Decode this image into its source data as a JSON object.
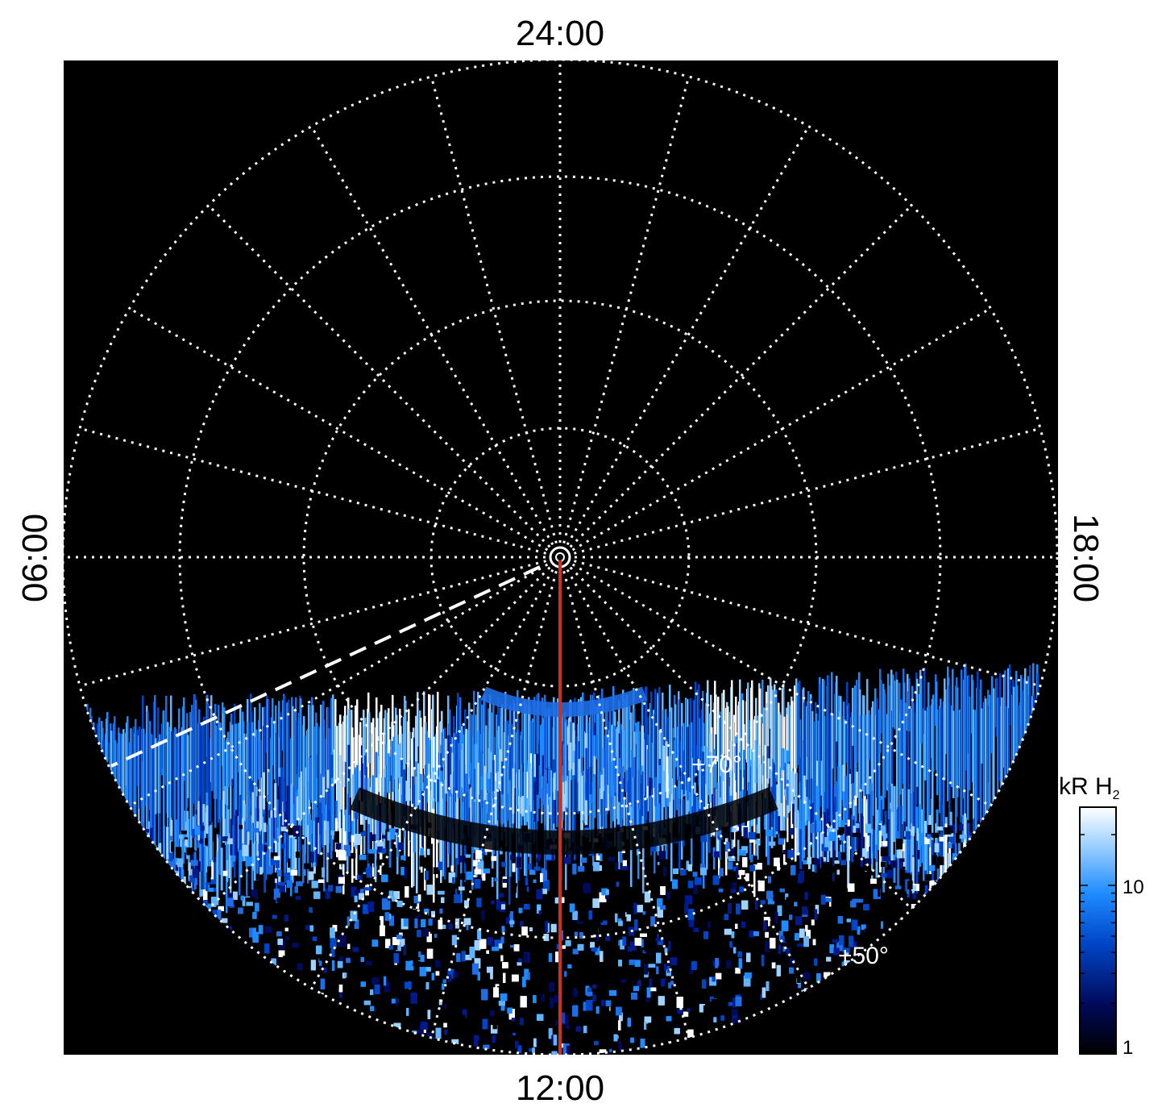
{
  "figure": {
    "local_time_labels": {
      "top": "24:00",
      "bottom": "12:00",
      "left": "06:00",
      "right": "18:00"
    },
    "latitude_labels": {
      "inner": "+70°",
      "outer": "+50°"
    },
    "colorbar": {
      "title": "kR H",
      "title_subscript": "2",
      "tick_labels": [
        "1",
        "10"
      ],
      "scale": "log",
      "colors": [
        "#000000",
        "#000a5a",
        "#0046c8",
        "#1e8cff",
        "#a0d2ff",
        "#ffffff"
      ]
    },
    "background_color": "#000000",
    "grid_color": "#ffffff",
    "noon_meridian_color": "#c8321e",
    "dashed_line_color": "#ffffff"
  }
}
